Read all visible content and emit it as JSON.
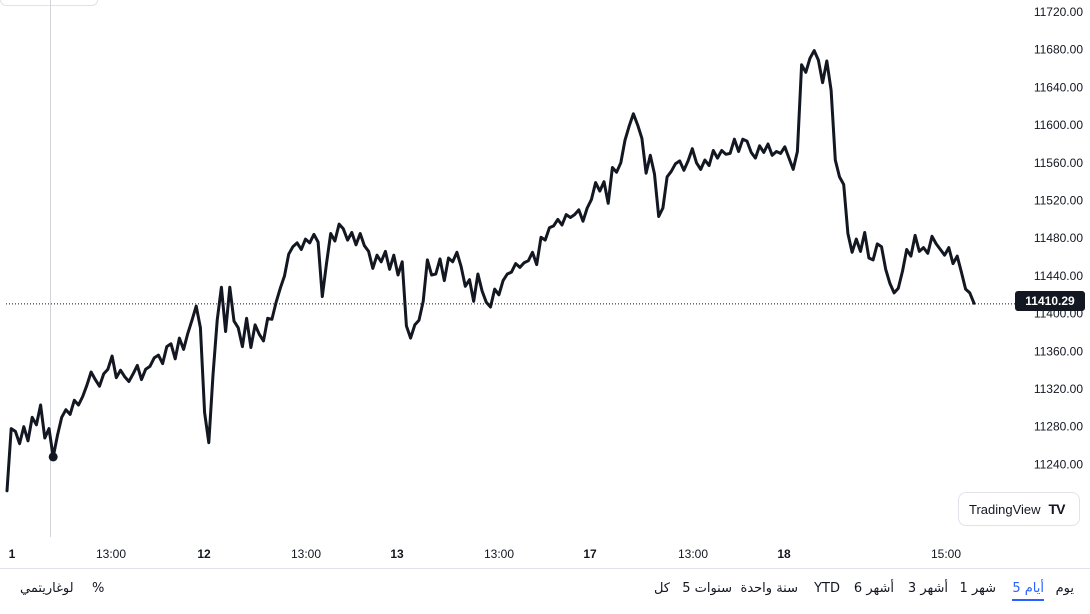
{
  "chart_data": {
    "type": "line",
    "series_color": "#131722",
    "grid": false,
    "ylim": [
      11200,
      11730
    ],
    "y_ticks": [
      "11720.00",
      "11680.00",
      "11640.00",
      "11600.00",
      "11560.00",
      "11520.00",
      "11480.00",
      "11440.00",
      "11400.00",
      "11360.00",
      "11320.00",
      "11280.00",
      "11240.00"
    ],
    "x_ticks": [
      {
        "label": "1",
        "bold": true
      },
      {
        "label": "13:00",
        "bold": false
      },
      {
        "label": "12",
        "bold": true
      },
      {
        "label": "13:00",
        "bold": false
      },
      {
        "label": "13",
        "bold": true
      },
      {
        "label": "13:00",
        "bold": false
      },
      {
        "label": "17",
        "bold": true
      },
      {
        "label": "13:00",
        "bold": false
      },
      {
        "label": "18",
        "bold": true
      },
      {
        "label": "15:00",
        "bold": false
      }
    ],
    "last_price": "11410.29",
    "last_price_value": 11410.29,
    "values": [
      11212,
      11278,
      11275,
      11262,
      11280,
      11265,
      11290,
      11282,
      11303,
      11268,
      11278,
      11248,
      11271,
      11290,
      11298,
      11293,
      11308,
      11303,
      11312,
      11324,
      11338,
      11330,
      11323,
      11336,
      11341,
      11355,
      11332,
      11340,
      11333,
      11328,
      11336,
      11345,
      11330,
      11341,
      11344,
      11353,
      11356,
      11347,
      11365,
      11368,
      11352,
      11374,
      11362,
      11379,
      11393,
      11408,
      11385,
      11295,
      11263,
      11335,
      11393,
      11428,
      11381,
      11428,
      11392,
      11385,
      11365,
      11395,
      11364,
      11388,
      11378,
      11371,
      11395,
      11394,
      11412,
      11427,
      11440,
      11463,
      11471,
      11475,
      11468,
      11479,
      11475,
      11484,
      11476,
      11418,
      11453,
      11485,
      11477,
      11495,
      11490,
      11478,
      11486,
      11473,
      11485,
      11472,
      11466,
      11448,
      11462,
      11455,
      11466,
      11447,
      11462,
      11441,
      11455,
      11387,
      11374,
      11388,
      11393,
      11413,
      11457,
      11441,
      11442,
      11458,
      11435,
      11459,
      11455,
      11465,
      11450,
      11429,
      11436,
      11413,
      11442,
      11424,
      11412,
      11407,
      11426,
      11420,
      11435,
      11442,
      11444,
      11453,
      11449,
      11454,
      11456,
      11465,
      11452,
      11481,
      11478,
      11491,
      11493,
      11500,
      11494,
      11505,
      11502,
      11505,
      11510,
      11498,
      11512,
      11521,
      11539,
      11530,
      11540,
      11517,
      11555,
      11550,
      11560,
      11584,
      11599,
      11612,
      11600,
      11586,
      11549,
      11568,
      11548,
      11503,
      11512,
      11545,
      11551,
      11559,
      11562,
      11552,
      11562,
      11575,
      11560,
      11553,
      11563,
      11557,
      11573,
      11565,
      11573,
      11569,
      11570,
      11585,
      11572,
      11585,
      11583,
      11571,
      11565,
      11578,
      11571,
      11580,
      11568,
      11572,
      11570,
      11577,
      11565,
      11553,
      11572,
      11664,
      11656,
      11671,
      11679,
      11669,
      11645,
      11668,
      11637,
      11563,
      11545,
      11537,
      11485,
      11465,
      11479,
      11466,
      11486,
      11459,
      11457,
      11474,
      11471,
      11447,
      11432,
      11422,
      11427,
      11445,
      11468,
      11461,
      11483,
      11466,
      11470,
      11464,
      11482,
      11474,
      11468,
      11462,
      11470,
      11453,
      11461,
      11444,
      11426,
      11422,
      11411
    ],
    "start_marker_index": 11
  },
  "watermark": {
    "brand_label": "TradingView",
    "logo_glyph": "TV"
  },
  "toolbar": {
    "timeframes": [
      {
        "label": "يوم",
        "active": false
      },
      {
        "label": "5 أيام",
        "active": true
      },
      {
        "label": "1 شهر",
        "active": false
      },
      {
        "label": "3 أشهر",
        "active": false
      },
      {
        "label": "6 أشهر",
        "active": false
      },
      {
        "label": "YTD",
        "active": false
      },
      {
        "label": "سنة واحدة",
        "active": false
      },
      {
        "label": "5 سنوات",
        "active": false
      },
      {
        "label": "كل",
        "active": false
      }
    ],
    "percent_label": "%",
    "log_label": "لوغاريتمي"
  }
}
